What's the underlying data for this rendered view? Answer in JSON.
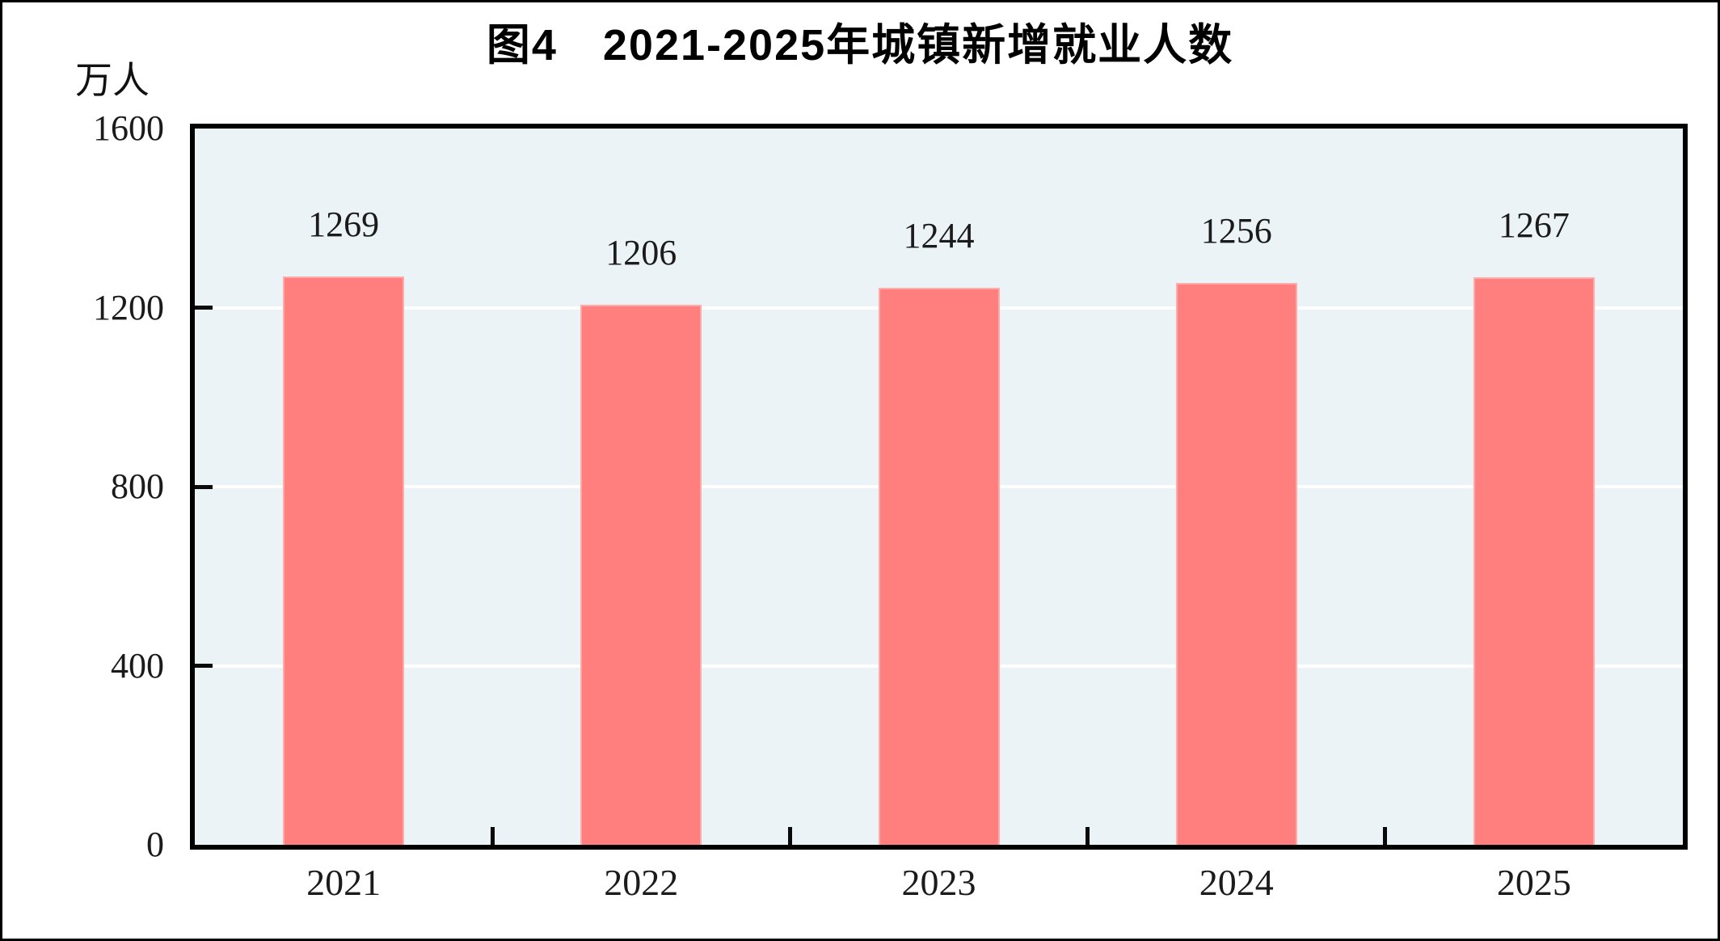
{
  "figure": {
    "title": "图4　2021-2025年城镇新增就业人数",
    "unit_label": "万人"
  },
  "chart_data": {
    "type": "bar",
    "title": "图4　2021-2025年城镇新增就业人数",
    "xlabel": "",
    "ylabel": "万人",
    "categories": [
      "2021",
      "2022",
      "2023",
      "2024",
      "2025"
    ],
    "values": [
      1269,
      1206,
      1244,
      1256,
      1267
    ],
    "value_labels": [
      "1269",
      "1206",
      "1244",
      "1256",
      "1267"
    ],
    "ylim": [
      0,
      1600
    ],
    "yticks": [
      0,
      400,
      800,
      1200,
      1600
    ],
    "grid": "horizontal-white-lines",
    "legend_position": "none",
    "colors": {
      "bar_fill": "#ff7f7f",
      "bar_edge": "#ffabab",
      "plot_background": "#ecf3f7",
      "gridline": "#ffffff",
      "axis": "#000000",
      "text": "#1b1b1b"
    }
  }
}
